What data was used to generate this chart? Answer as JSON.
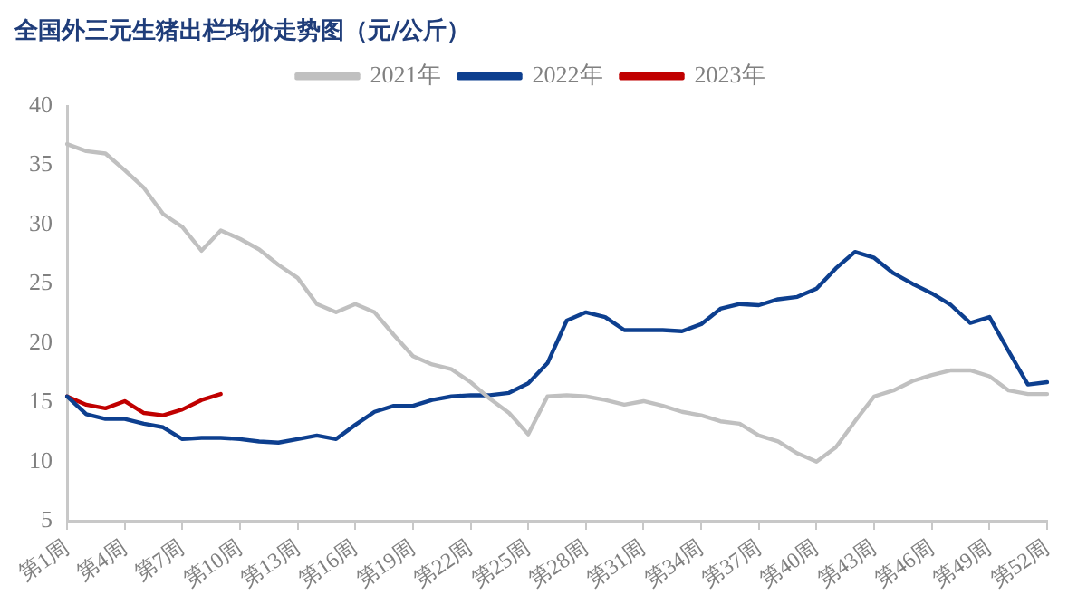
{
  "chart_data": {
    "type": "line",
    "title": "全国外三元生猪出栏均价走势图（元/公斤）",
    "categories": [
      "第1周",
      null,
      null,
      "第4周",
      null,
      null,
      "第7周",
      null,
      null,
      "第10周",
      null,
      null,
      "第13周",
      null,
      null,
      "第16周",
      null,
      null,
      "第19周",
      null,
      null,
      "第22周",
      null,
      null,
      "第25周",
      null,
      null,
      "第28周",
      null,
      null,
      "第31周",
      null,
      null,
      "第34周",
      null,
      null,
      "第37周",
      null,
      null,
      "第40周",
      null,
      null,
      "第43周",
      null,
      null,
      "第46周",
      null,
      null,
      "第49周",
      null,
      null,
      "第52周"
    ],
    "series": [
      {
        "name": "2021年",
        "color": "#c0c0c0",
        "values": [
          36.8,
          36.2,
          36.0,
          34.6,
          33.1,
          30.9,
          29.8,
          27.8,
          29.5,
          28.8,
          27.9,
          26.6,
          25.5,
          23.3,
          22.6,
          23.3,
          22.6,
          20.7,
          18.9,
          18.2,
          17.8,
          16.7,
          15.3,
          14.1,
          12.3,
          15.5,
          15.6,
          15.5,
          15.2,
          14.8,
          15.1,
          14.7,
          14.2,
          13.9,
          13.4,
          13.2,
          12.2,
          11.7,
          10.7,
          10.0,
          11.2,
          13.4,
          15.5,
          16.0,
          16.8,
          17.3,
          17.7,
          17.7,
          17.2,
          16.0,
          15.7,
          15.7
        ]
      },
      {
        "name": "2022年",
        "color": "#0d3f8f",
        "values": [
          15.5,
          14.0,
          13.6,
          13.6,
          13.2,
          12.9,
          11.9,
          12.0,
          12.0,
          11.9,
          11.7,
          11.6,
          11.9,
          12.2,
          11.9,
          13.1,
          14.2,
          14.7,
          14.7,
          15.2,
          15.5,
          15.6,
          15.6,
          15.8,
          16.6,
          18.3,
          21.9,
          22.6,
          22.2,
          21.1,
          21.1,
          21.1,
          21.0,
          21.6,
          22.9,
          23.3,
          23.2,
          23.7,
          23.9,
          24.6,
          26.3,
          27.7,
          27.2,
          25.9,
          25.0,
          24.2,
          23.2,
          21.7,
          22.2,
          19.3,
          16.5,
          16.7
        ]
      },
      {
        "name": "2023年",
        "color": "#c00000",
        "values": [
          15.5,
          14.8,
          14.5,
          15.1,
          14.1,
          13.9,
          14.4,
          15.2,
          15.7,
          null,
          null,
          null,
          null,
          null,
          null,
          null,
          null,
          null,
          null,
          null,
          null,
          null,
          null,
          null,
          null,
          null,
          null,
          null,
          null,
          null,
          null,
          null,
          null,
          null,
          null,
          null,
          null,
          null,
          null,
          null,
          null,
          null,
          null,
          null,
          null,
          null,
          null,
          null,
          null,
          null,
          null,
          null
        ]
      }
    ],
    "ylim": [
      5,
      40
    ],
    "yticks": [
      5,
      10,
      15,
      20,
      25,
      30,
      35,
      40
    ],
    "grid": false,
    "legend": "top",
    "marker": "none",
    "line_style": "solid"
  }
}
